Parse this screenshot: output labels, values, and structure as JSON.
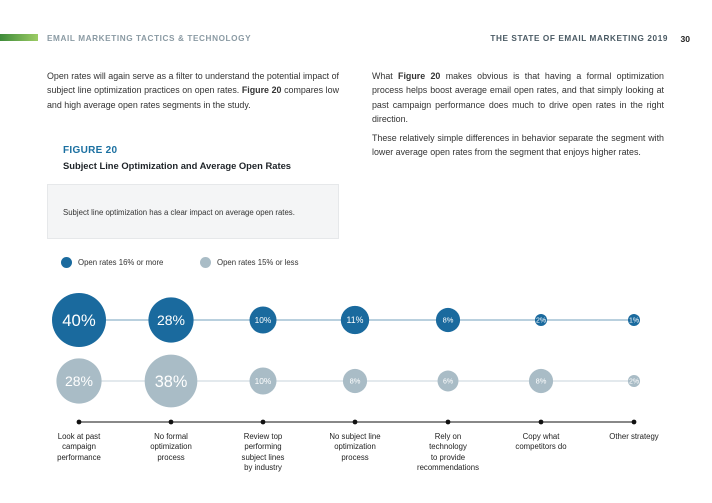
{
  "header": {
    "section_title": "EMAIL MARKETING TACTICS & TECHNOLOGY",
    "report_title": "THE STATE OF EMAIL MARKETING 2019",
    "page_number": "30"
  },
  "body": {
    "left_paragraph_parts": [
      "Open rates will again serve as a filter to understand the potential impact of subject line optimization practices on open rates. ",
      "Figure 20",
      " compares low and high average open rates segments in the study."
    ],
    "right_paragraph_1_parts": [
      "What ",
      "Figure 20",
      " makes obvious is that having a formal optimization process helps boost average email open rates, and that simply looking at past campaign performance does much to drive open rates in the right direction."
    ],
    "right_paragraph_2": "These relatively simple differences in behavior separate the segment with lower average open rates from the segment that enjoys higher rates."
  },
  "figure": {
    "label": "FIGURE 20",
    "title": "Subject Line Optimization and Average Open Rates",
    "callout": "Subject line optimization has a clear impact on average open rates."
  },
  "colors": {
    "high": "#1a6a9e",
    "low": "#a9bcc6",
    "line_high": "#8fb3cb",
    "line_low": "#d2dce2"
  },
  "chart_data": {
    "type": "bubble",
    "categories": [
      "Look at past campaign performance",
      "No formal optimization process",
      "Review top performing subject lines by industry",
      "No subject line optimization process",
      "Rely on technology to provide recommendations",
      "Copy what competitors do",
      "Other strategy"
    ],
    "category_lines": [
      [
        "Look at past",
        "campaign",
        "performance"
      ],
      [
        "No formal",
        "optimization",
        "process"
      ],
      [
        "Review top",
        "performing",
        "subject lines",
        "by industry"
      ],
      [
        "No subject line",
        "optimization",
        "process"
      ],
      [
        "Rely on",
        "technology",
        "to provide",
        "recommendations"
      ],
      [
        "Copy what",
        "competitors do"
      ],
      [
        "Other strategy"
      ]
    ],
    "series": [
      {
        "name": "Open rates 16% or more",
        "values": [
          40,
          28,
          10,
          11,
          8,
          2,
          1
        ]
      },
      {
        "name": "Open rates 15% or less",
        "values": [
          28,
          38,
          10,
          8,
          6,
          8,
          2
        ]
      }
    ],
    "unit": "%"
  }
}
